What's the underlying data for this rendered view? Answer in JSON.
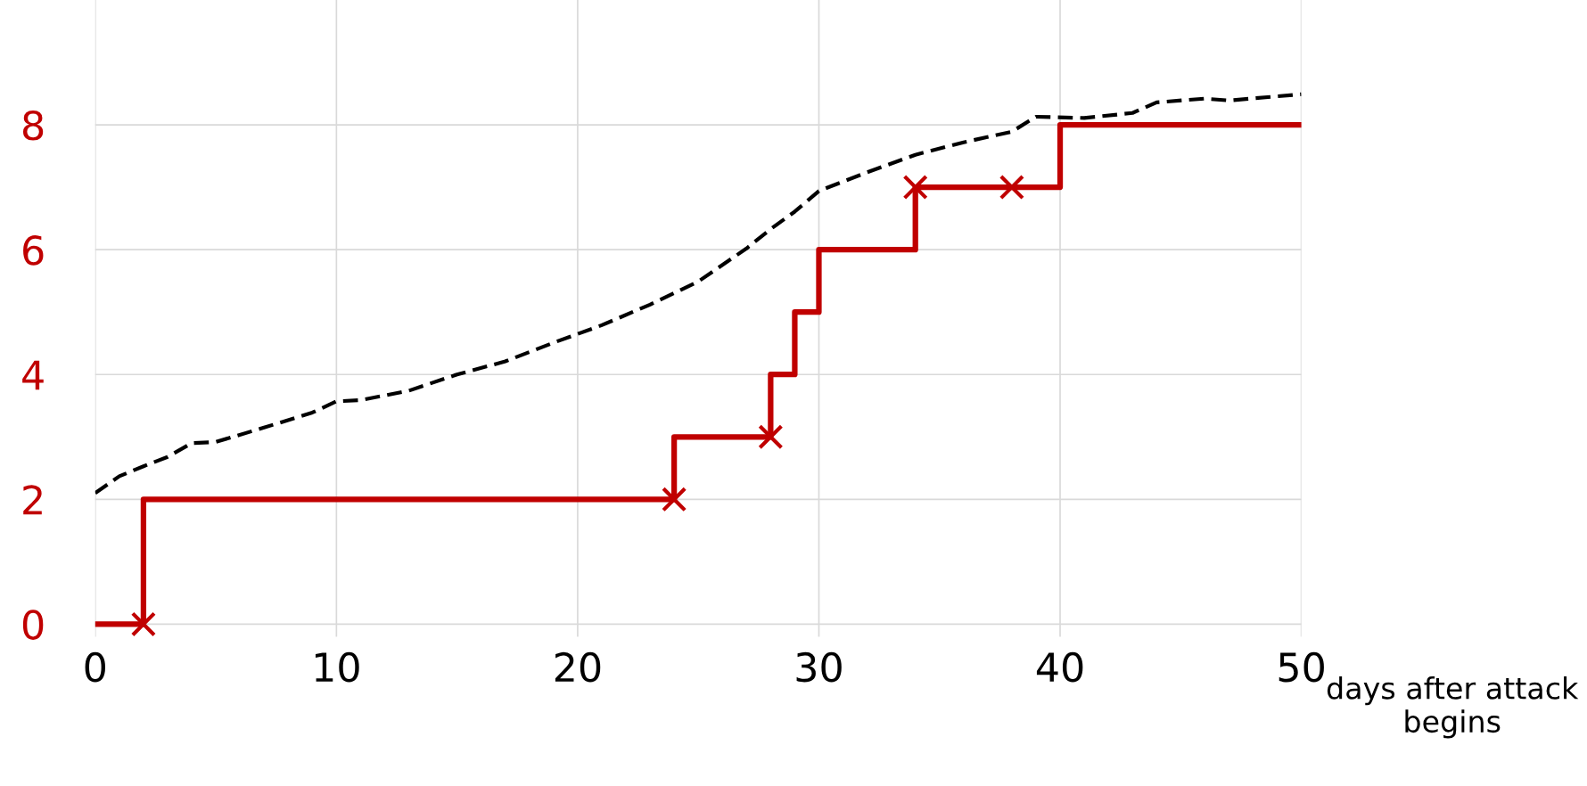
{
  "chart_data": {
    "type": "line",
    "xlabel": "days after attack begins",
    "xlim": [
      0,
      50
    ],
    "ylim": [
      -0.2,
      10
    ],
    "xticks": [
      0,
      10,
      20,
      30,
      40,
      50
    ],
    "yticks": [
      0,
      2,
      4,
      6,
      8
    ],
    "grid": true,
    "series": [
      {
        "type": "line",
        "line_style": "dashed",
        "color": "#000000",
        "x": [
          0,
          1,
          2,
          3,
          4,
          5,
          7,
          9,
          10,
          11,
          13,
          15,
          17,
          19,
          21,
          23,
          25,
          27,
          28,
          29,
          30,
          32,
          34,
          36,
          38,
          39,
          41,
          43,
          44,
          46,
          47,
          50
        ],
        "values": [
          2.1,
          2.37,
          2.53,
          2.68,
          2.9,
          2.92,
          3.15,
          3.39,
          3.57,
          3.59,
          3.74,
          4.0,
          4.21,
          4.51,
          4.79,
          5.12,
          5.49,
          6.02,
          6.33,
          6.61,
          6.94,
          7.24,
          7.52,
          7.72,
          7.89,
          8.13,
          8.11,
          8.19,
          8.36,
          8.42,
          8.39,
          8.49
        ]
      },
      {
        "type": "step",
        "line_style": "solid",
        "color": "#c00000",
        "x": [
          0,
          2,
          24,
          28,
          29,
          30,
          34,
          40,
          50
        ],
        "values": [
          0,
          2,
          3,
          4,
          5,
          6,
          7,
          8,
          8
        ]
      },
      {
        "type": "scatter",
        "marker": "cross",
        "color": "#c00000",
        "x": [
          2,
          24,
          28,
          34,
          38
        ],
        "values": [
          0,
          2,
          3,
          7,
          7
        ]
      }
    ]
  }
}
